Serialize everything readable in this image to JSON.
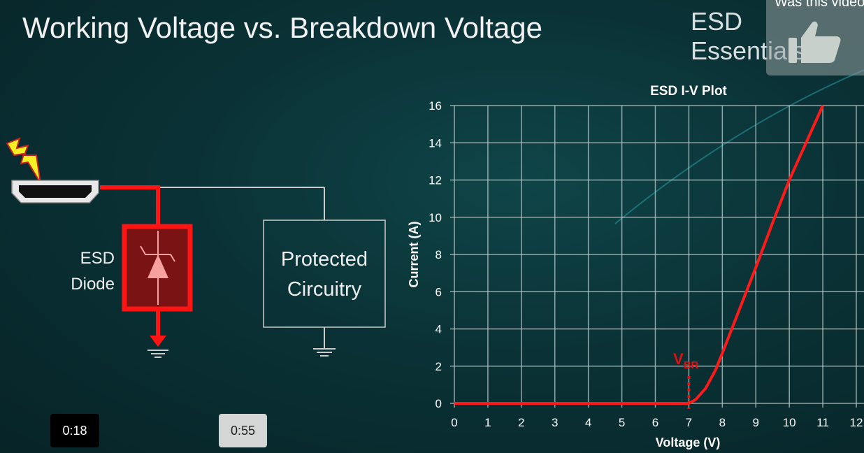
{
  "slide": {
    "title": "Working Voltage vs. Breakdown Voltage",
    "brand": "ESD Essentials",
    "diagram": {
      "diode_label_line1": "ESD",
      "diode_label_line2": "Diode",
      "protected_line1": "Protected",
      "protected_line2": "Circuitry",
      "icons": [
        "lightning-icon",
        "hdmi-connector-icon",
        "tvs-diode-icon",
        "ground-icon"
      ]
    }
  },
  "feedback": {
    "question": "Was this video",
    "icon": "thumbs-up-icon"
  },
  "player": {
    "current_time": "0:18",
    "hover_time": "0:55"
  },
  "colors": {
    "curve": "#ff1a1a",
    "grid": "#b8c4c4",
    "accent": "#e01010"
  },
  "chart_data": {
    "type": "line",
    "title": "ESD I-V Plot",
    "xlabel": "Voltage (V)",
    "ylabel": "Current (A)",
    "xlim": [
      0,
      12
    ],
    "ylim": [
      0,
      16
    ],
    "xticks": [
      "0",
      "1",
      "2",
      "3",
      "4",
      "5",
      "6",
      "7",
      "8",
      "9",
      "10",
      "11",
      "12"
    ],
    "yticks": [
      "0",
      "2",
      "4",
      "6",
      "8",
      "10",
      "12",
      "14",
      "16"
    ],
    "grid": true,
    "series": [
      {
        "x": [
          0,
          7,
          7.2,
          7.5,
          7.8,
          8,
          8.5,
          9,
          9.5,
          10,
          10.5,
          11
        ],
        "y": [
          0,
          0,
          0.2,
          0.8,
          1.8,
          2.7,
          5,
          7.3,
          9.7,
          12,
          14,
          16
        ]
      }
    ],
    "annotation": {
      "label": "V",
      "subscript": "BR",
      "x": 7
    }
  }
}
